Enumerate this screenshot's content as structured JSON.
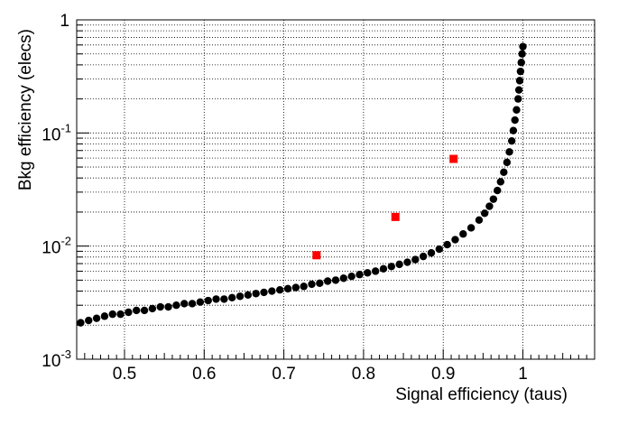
{
  "chart_data": {
    "type": "scatter",
    "xlabel": "Signal efficiency (taus)",
    "ylabel": "Bkg efficiency (elecs)",
    "xlim": [
      0.44,
      1.09
    ],
    "ylim": [
      0.001,
      1
    ],
    "y_scale": "log",
    "grid": true,
    "x_ticks": [
      "0.5",
      "0.6",
      "0.7",
      "0.8",
      "0.9",
      "1"
    ],
    "x_tick_values": [
      0.5,
      0.6,
      0.7,
      0.8,
      0.9,
      1.0
    ],
    "y_ticks": [
      {
        "base": "10",
        "exp": "-3",
        "value": 0.001
      },
      {
        "base": "10",
        "exp": "-2",
        "value": 0.01
      },
      {
        "base": "10",
        "exp": "-1",
        "value": 0.1
      },
      {
        "base": "1",
        "exp": "",
        "value": 1
      }
    ],
    "series": [
      {
        "marker": "circle",
        "color": "#000000",
        "x": [
          0.445,
          0.455,
          0.465,
          0.475,
          0.485,
          0.495,
          0.505,
          0.515,
          0.525,
          0.535,
          0.545,
          0.555,
          0.565,
          0.575,
          0.585,
          0.595,
          0.605,
          0.615,
          0.625,
          0.635,
          0.645,
          0.655,
          0.665,
          0.675,
          0.685,
          0.695,
          0.705,
          0.715,
          0.725,
          0.735,
          0.745,
          0.755,
          0.765,
          0.775,
          0.785,
          0.795,
          0.805,
          0.815,
          0.825,
          0.835,
          0.845,
          0.855,
          0.865,
          0.875,
          0.885,
          0.895,
          0.905,
          0.915,
          0.925,
          0.935,
          0.945,
          0.952,
          0.958,
          0.963,
          0.968,
          0.972,
          0.976,
          0.98,
          0.983,
          0.986,
          0.988,
          0.99,
          0.992,
          0.994,
          0.995,
          0.996,
          0.997,
          0.998,
          0.999,
          1.0
        ],
        "y": [
          0.0021,
          0.0022,
          0.0023,
          0.0024,
          0.0025,
          0.0025,
          0.0026,
          0.0027,
          0.0027,
          0.0028,
          0.0029,
          0.0029,
          0.003,
          0.0031,
          0.0031,
          0.0032,
          0.0033,
          0.0034,
          0.0034,
          0.0035,
          0.0036,
          0.0037,
          0.0038,
          0.0039,
          0.004,
          0.0041,
          0.0042,
          0.0043,
          0.0044,
          0.0046,
          0.0047,
          0.0049,
          0.005,
          0.0052,
          0.0054,
          0.0056,
          0.0058,
          0.006,
          0.0063,
          0.0066,
          0.0069,
          0.0072,
          0.0076,
          0.0081,
          0.0087,
          0.0094,
          0.0103,
          0.0114,
          0.0128,
          0.0145,
          0.017,
          0.0195,
          0.0225,
          0.026,
          0.031,
          0.037,
          0.045,
          0.055,
          0.068,
          0.085,
          0.105,
          0.13,
          0.16,
          0.2,
          0.24,
          0.29,
          0.35,
          0.42,
          0.5,
          0.58
        ]
      },
      {
        "marker": "square",
        "color": "#ff0000",
        "x": [
          0.741,
          0.84,
          0.913
        ],
        "y": [
          0.0083,
          0.0181,
          0.059
        ]
      }
    ]
  }
}
